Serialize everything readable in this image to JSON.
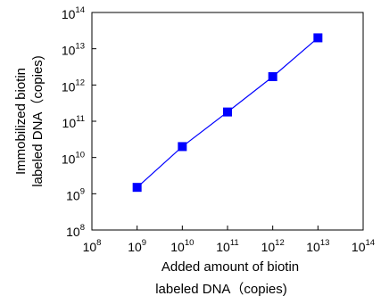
{
  "chart_data": {
    "type": "line",
    "title": "",
    "xlabel_lines": [
      "Added amount of biotin",
      "labeled DNA（copies)"
    ],
    "ylabel_lines": [
      "Immobilized biotin",
      "labeled DNA（copies)"
    ],
    "x_scale": "log",
    "y_scale": "log",
    "xlim": [
      100000000.0,
      100000000000000.0
    ],
    "ylim": [
      100000000.0,
      100000000000000.0
    ],
    "x_ticks": [
      {
        "base": "10",
        "exp": "8"
      },
      {
        "base": "10",
        "exp": "9"
      },
      {
        "base": "10",
        "exp": "10"
      },
      {
        "base": "10",
        "exp": "11"
      },
      {
        "base": "10",
        "exp": "12"
      },
      {
        "base": "10",
        "exp": "13"
      },
      {
        "base": "10",
        "exp": "14"
      }
    ],
    "y_ticks": [
      {
        "base": "10",
        "exp": "8"
      },
      {
        "base": "10",
        "exp": "9"
      },
      {
        "base": "10",
        "exp": "10"
      },
      {
        "base": "10",
        "exp": "11"
      },
      {
        "base": "10",
        "exp": "12"
      },
      {
        "base": "10",
        "exp": "13"
      },
      {
        "base": "10",
        "exp": "14"
      }
    ],
    "grid": false,
    "legend": "none",
    "series": [
      {
        "color": "#0000ff",
        "marker": "square",
        "x": [
          1000000000.0,
          10000000000.0,
          100000000000.0,
          1000000000000.0,
          10000000000000.0
        ],
        "y": [
          1500000000.0,
          20000000000.0,
          180000000000.0,
          1700000000000.0,
          20000000000000.0
        ]
      }
    ]
  }
}
